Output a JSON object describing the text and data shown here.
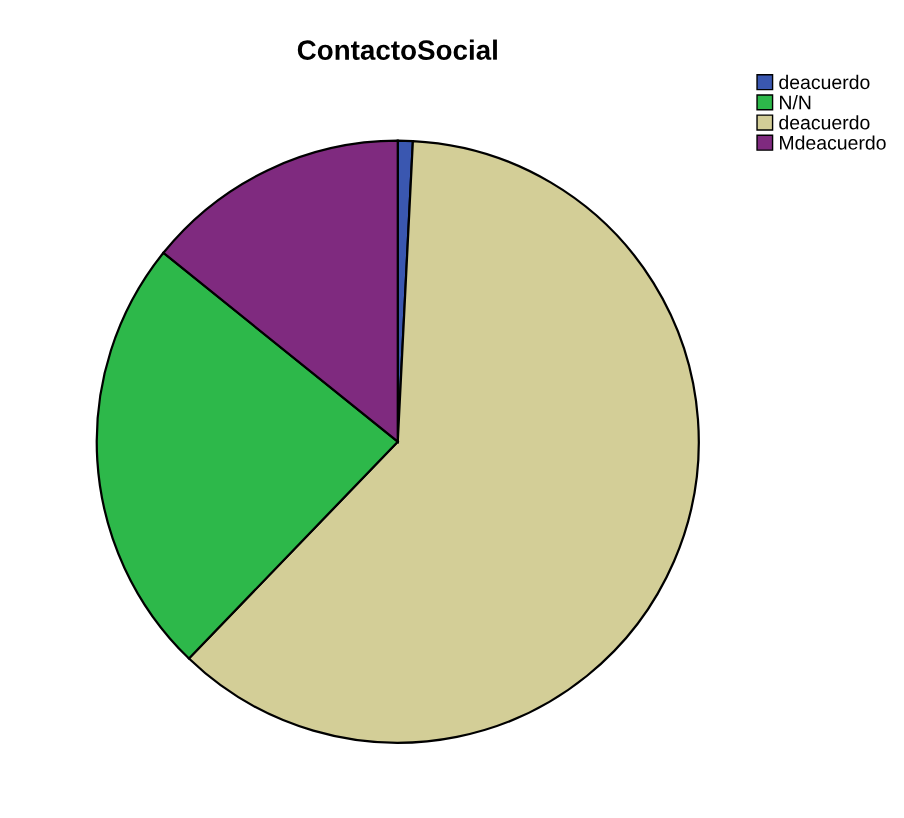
{
  "chart_data": {
    "type": "pie",
    "title": "ContactoSocial",
    "categories": [
      "deacuerdo",
      "N/N",
      "deacuerdo",
      "Mdeacuerdo"
    ],
    "values": [
      0.8,
      23.6,
      61.4,
      14.2
    ],
    "colors": [
      "#3a57b0",
      "#2db84a",
      "#d3ce97",
      "#7f2a7f"
    ],
    "legend": "top right"
  }
}
